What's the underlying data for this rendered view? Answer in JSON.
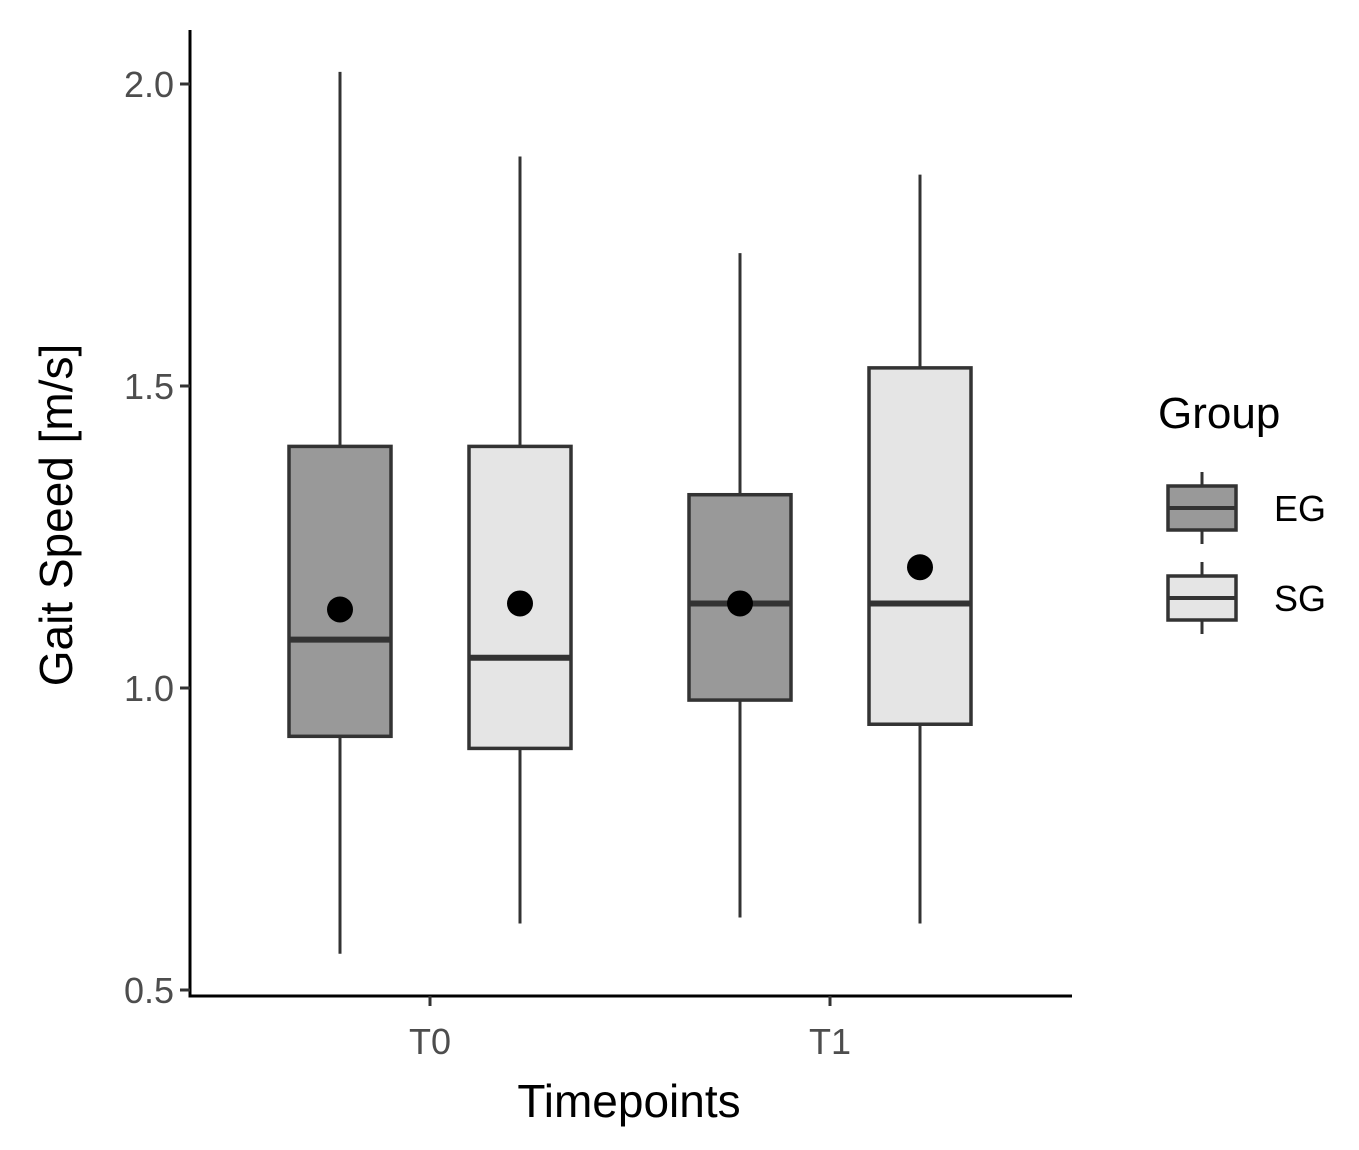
{
  "chart_data": {
    "type": "boxplot",
    "xlabel": "Timepoints",
    "ylabel": "Gait Speed [m/s]",
    "ylim": [
      0.5,
      2.1
    ],
    "yticks": [
      "0.5",
      "1.0",
      "1.5",
      "2.0"
    ],
    "categories": [
      "T0",
      "T1"
    ],
    "legend": {
      "title": "Group",
      "position": "right",
      "entries": [
        "EG",
        "SG"
      ]
    },
    "series": [
      {
        "name": "EG",
        "fill": "#999999",
        "boxes": [
          {
            "category": "T0",
            "min": 0.56,
            "q1": 0.92,
            "median": 1.08,
            "q3": 1.4,
            "max": 2.02,
            "mean": 1.13
          },
          {
            "category": "T1",
            "min": 0.62,
            "q1": 0.98,
            "median": 1.14,
            "q3": 1.32,
            "max": 1.72,
            "mean": 1.14
          }
        ]
      },
      {
        "name": "SG",
        "fill": "#e5e5e5",
        "boxes": [
          {
            "category": "T0",
            "min": 0.61,
            "q1": 0.9,
            "median": 1.05,
            "q3": 1.4,
            "max": 1.88,
            "mean": 1.14
          },
          {
            "category": "T1",
            "min": 0.61,
            "q1": 0.94,
            "median": 1.14,
            "q3": 1.53,
            "max": 1.85,
            "mean": 1.2
          }
        ]
      }
    ],
    "colors": {
      "stroke": "#333333",
      "mean_point": "#000000",
      "axis": "#000000"
    },
    "grid": false
  }
}
